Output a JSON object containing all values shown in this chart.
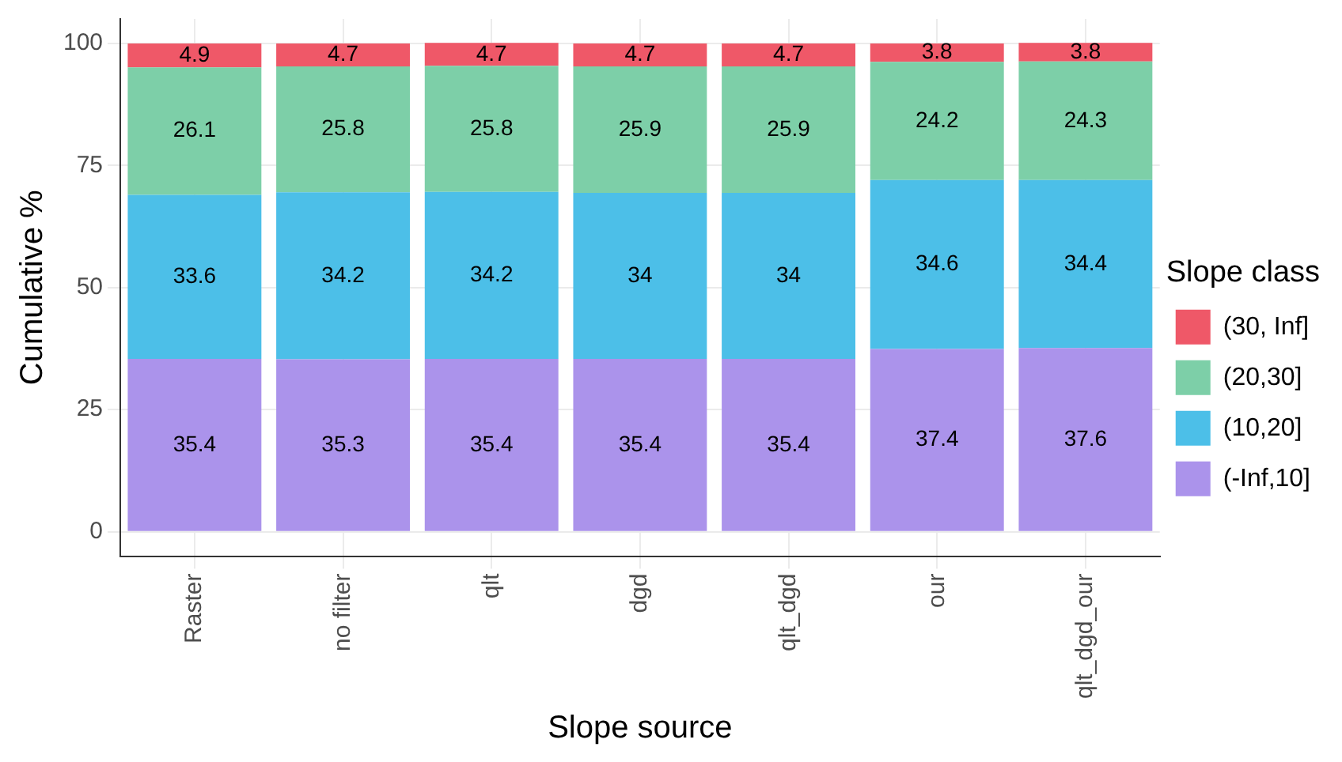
{
  "chart_data": {
    "type": "bar",
    "stacked": true,
    "xlabel": "Slope source",
    "ylabel": "Cumulative %",
    "legend_title": "Slope class",
    "legend": "right",
    "grid": true,
    "data_labels": true,
    "categories": [
      "Raster",
      "no filter",
      "qlt",
      "dgd",
      "qlt_dgd",
      "our",
      "qlt_dgd_our"
    ],
    "ylim": [
      -5,
      105
    ],
    "yticks": [
      0,
      25,
      50,
      75,
      100
    ],
    "series": [
      {
        "name": "(-Inf,10]",
        "color": "#ab93eb",
        "values": [
          35.4,
          35.3,
          35.4,
          35.4,
          35.4,
          37.4,
          37.6
        ]
      },
      {
        "name": "(10,20]",
        "color": "#4cbfe8",
        "values": [
          33.6,
          34.2,
          34.2,
          34,
          34,
          34.6,
          34.4
        ]
      },
      {
        "name": "(20,30]",
        "color": "#7dcfa8",
        "values": [
          26.1,
          25.8,
          25.8,
          25.9,
          25.9,
          24.2,
          24.3
        ]
      },
      {
        "name": "(30, Inf]",
        "color": "#ef5868",
        "values": [
          4.9,
          4.7,
          4.7,
          4.7,
          4.7,
          3.8,
          3.8
        ]
      }
    ]
  }
}
